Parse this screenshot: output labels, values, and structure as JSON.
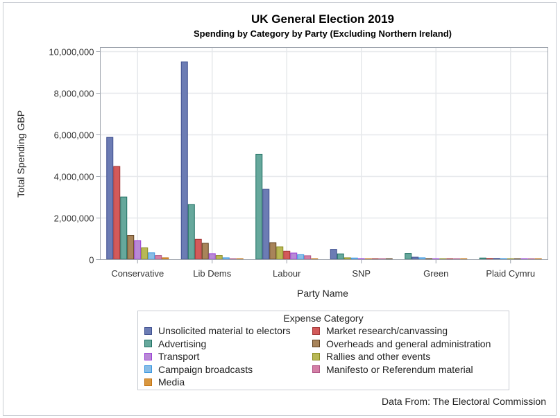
{
  "chart_data": {
    "type": "bar",
    "title": "UK General Election 2019",
    "subtitle": "Spending by Category by Party (Excluding Northern Ireland)",
    "xlabel": "Party Name",
    "ylabel": "Total Spending GBP",
    "ylim": [
      0,
      10200000
    ],
    "yticks": [
      0,
      2000000,
      4000000,
      6000000,
      8000000,
      10000000
    ],
    "ytick_labels": [
      "0",
      "2,000,000",
      "4,000,000",
      "6,000,000",
      "8,000,000",
      "10,000,000"
    ],
    "grid": true,
    "legend_position": "bottom",
    "legend_title": "Expense Category",
    "footnote": "Data From: The Electoral Commission",
    "categories": [
      "Conservative",
      "Lib Dems",
      "Labour",
      "SNP",
      "Green",
      "Plaid Cymru"
    ],
    "series": [
      {
        "name": "Unsolicited material to electors",
        "color": "#6c7cb4",
        "edge": "#3e4f8f"
      },
      {
        "name": "Market research/canvassing",
        "color": "#d35a5a",
        "edge": "#a23434"
      },
      {
        "name": "Advertising",
        "color": "#66a89c",
        "edge": "#1f6f62"
      },
      {
        "name": "Overheads and general administration",
        "color": "#a8845a",
        "edge": "#5e4020"
      },
      {
        "name": "Transport",
        "color": "#b889d6",
        "edge": "#9b3fd6"
      },
      {
        "name": "Rallies and other events",
        "color": "#b8b855",
        "edge": "#8a8a20"
      },
      {
        "name": "Campaign broadcasts",
        "color": "#89bde6",
        "edge": "#3a97e0"
      },
      {
        "name": "Manifesto or Referendum material",
        "color": "#d47fa6",
        "edge": "#b05585"
      },
      {
        "name": "Media",
        "color": "#d9973f",
        "edge": "#c27212"
      }
    ],
    "bars": [
      {
        "party": "Conservative",
        "values": [
          {
            "series": "Unsolicited material to electors",
            "value": 5870000
          },
          {
            "series": "Market research/canvassing",
            "value": 4470000
          },
          {
            "series": "Advertising",
            "value": 3000000
          },
          {
            "series": "Overheads and general administration",
            "value": 1150000
          },
          {
            "series": "Transport",
            "value": 900000
          },
          {
            "series": "Rallies and other events",
            "value": 550000
          },
          {
            "series": "Campaign broadcasts",
            "value": 310000
          },
          {
            "series": "Manifesto or Referendum material",
            "value": 180000
          },
          {
            "series": "Media",
            "value": 70000
          }
        ]
      },
      {
        "party": "Lib Dems",
        "values": [
          {
            "series": "Unsolicited material to electors",
            "value": 9510000
          },
          {
            "series": "Advertising",
            "value": 2640000
          },
          {
            "series": "Market research/canvassing",
            "value": 960000
          },
          {
            "series": "Overheads and general administration",
            "value": 770000
          },
          {
            "series": "Transport",
            "value": 270000
          },
          {
            "series": "Rallies and other events",
            "value": 180000
          },
          {
            "series": "Campaign broadcasts",
            "value": 70000
          },
          {
            "series": "Manifesto or Referendum material",
            "value": 20000
          },
          {
            "series": "Media",
            "value": 5000
          }
        ]
      },
      {
        "party": "Labour",
        "values": [
          {
            "series": "Advertising",
            "value": 5060000
          },
          {
            "series": "Unsolicited material to electors",
            "value": 3370000
          },
          {
            "series": "Overheads and general administration",
            "value": 800000
          },
          {
            "series": "Rallies and other events",
            "value": 600000
          },
          {
            "series": "Market research/canvassing",
            "value": 390000
          },
          {
            "series": "Transport",
            "value": 300000
          },
          {
            "series": "Campaign broadcasts",
            "value": 220000
          },
          {
            "series": "Manifesto or Referendum material",
            "value": 170000
          },
          {
            "series": "Media",
            "value": 20000
          }
        ]
      },
      {
        "party": "SNP",
        "values": [
          {
            "series": "Unsolicited material to electors",
            "value": 480000
          },
          {
            "series": "Advertising",
            "value": 260000
          },
          {
            "series": "Rallies and other events",
            "value": 70000
          },
          {
            "series": "Campaign broadcasts",
            "value": 60000
          },
          {
            "series": "Transport",
            "value": 30000
          },
          {
            "series": "Media",
            "value": 20000
          },
          {
            "series": "Market research/canvassing",
            "value": 20000
          },
          {
            "series": "Manifesto or Referendum material",
            "value": 20000
          },
          {
            "series": "Overheads and general administration",
            "value": 10000
          }
        ]
      },
      {
        "party": "Green",
        "values": [
          {
            "series": "Advertising",
            "value": 280000
          },
          {
            "series": "Unsolicited material to electors",
            "value": 100000
          },
          {
            "series": "Campaign broadcasts",
            "value": 70000
          },
          {
            "series": "Overheads and general administration",
            "value": 30000
          },
          {
            "series": "Transport",
            "value": 10000
          },
          {
            "series": "Rallies and other events",
            "value": 10000
          },
          {
            "series": "Market research/canvassing",
            "value": 10000
          },
          {
            "series": "Manifesto or Referendum material",
            "value": 5000
          },
          {
            "series": "Media",
            "value": 5000
          }
        ]
      },
      {
        "party": "Plaid Cymru",
        "values": [
          {
            "series": "Advertising",
            "value": 60000
          },
          {
            "series": "Market research/canvassing",
            "value": 40000
          },
          {
            "series": "Unsolicited material to electors",
            "value": 40000
          },
          {
            "series": "Campaign broadcasts",
            "value": 30000
          },
          {
            "series": "Rallies and other events",
            "value": 15000
          },
          {
            "series": "Overheads and general administration",
            "value": 15000
          },
          {
            "series": "Transport",
            "value": 10000
          },
          {
            "series": "Manifesto or Referendum material",
            "value": 10000
          },
          {
            "series": "Media",
            "value": 5000
          }
        ]
      }
    ]
  },
  "legend": {
    "title": "Expense Category",
    "items": [
      {
        "label": "Unsolicited material to electors",
        "color": "#6c7cb4",
        "edge": "#3e4f8f"
      },
      {
        "label": "Market research/canvassing",
        "color": "#d35a5a",
        "edge": "#a23434"
      },
      {
        "label": "Advertising",
        "color": "#66a89c",
        "edge": "#1f6f62"
      },
      {
        "label": "Overheads and general administration",
        "color": "#a8845a",
        "edge": "#5e4020"
      },
      {
        "label": "Transport",
        "color": "#b889d6",
        "edge": "#9b3fd6"
      },
      {
        "label": "Rallies and other events",
        "color": "#b8b855",
        "edge": "#8a8a20"
      },
      {
        "label": "Campaign broadcasts",
        "color": "#89bde6",
        "edge": "#3a97e0"
      },
      {
        "label": "Manifesto or Referendum material",
        "color": "#d47fa6",
        "edge": "#b05585"
      },
      {
        "label": "Media",
        "color": "#d9973f",
        "edge": "#c27212"
      }
    ]
  },
  "footnote": "Data From: The Electoral Commission"
}
